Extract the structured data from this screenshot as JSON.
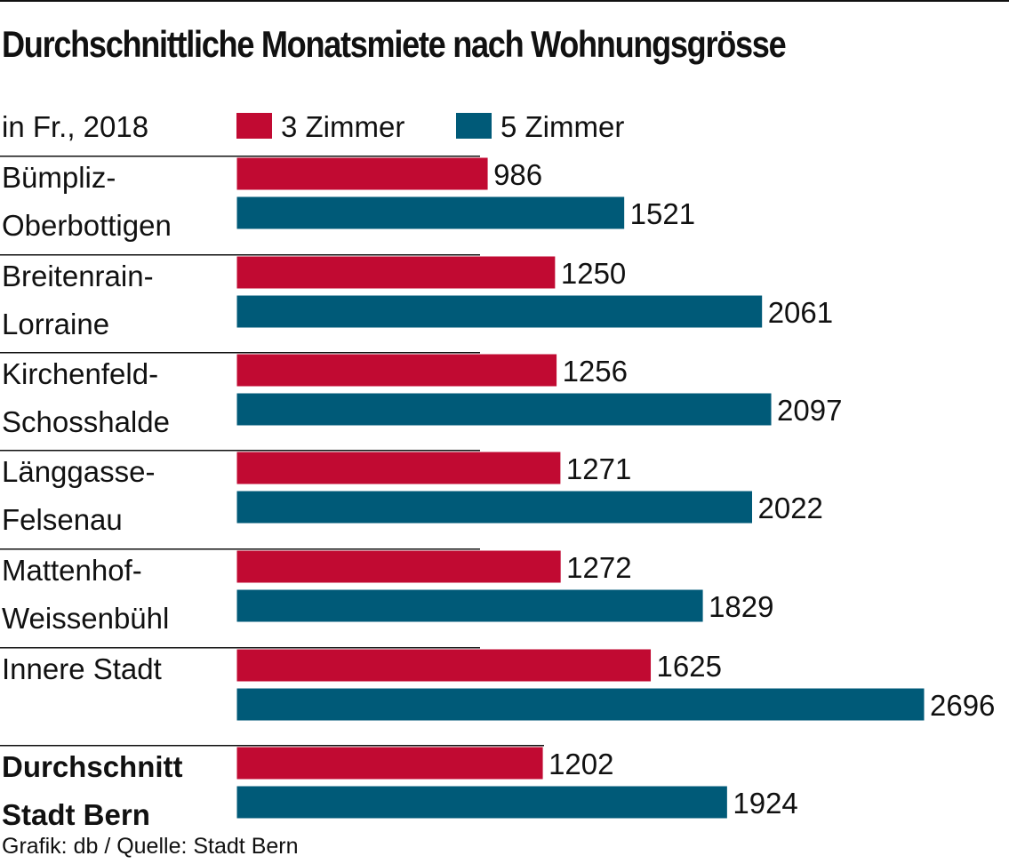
{
  "title": "Durchschnittliche Monatsmiete nach Wohnungsgrösse",
  "unit_label": "in Fr., 2018",
  "source": "Grafik: db / Quelle: Stadt Bern",
  "colors": {
    "series_3_zimmer": "#c10a32",
    "series_5_zimmer": "#005a78"
  },
  "chart_data": {
    "type": "bar",
    "orientation": "horizontal",
    "title": "Durchschnittliche Monatsmiete nach Wohnungsgrösse",
    "subtitle": "in Fr., 2018",
    "legend_position": "top",
    "categories": [
      [
        "Bümpliz-",
        "Oberbottigen"
      ],
      [
        "Breitenrain-",
        "Lorraine"
      ],
      [
        "Kirchenfeld-",
        "Schosshalde"
      ],
      [
        "Länggasse-",
        "Felsenau"
      ],
      [
        "Mattenhof-",
        "Weissenbühl"
      ],
      [
        "Innere Stadt"
      ],
      [
        "Durchschnitt",
        "Stadt Bern"
      ]
    ],
    "series": [
      {
        "name": "3 Zimmer",
        "values": [
          986,
          1250,
          1256,
          1271,
          1272,
          1625,
          1202
        ]
      },
      {
        "name": "5 Zimmer",
        "values": [
          1521,
          2061,
          2097,
          2022,
          1829,
          2696,
          1924
        ]
      }
    ],
    "xlim": [
      0,
      2696
    ],
    "grid": false
  }
}
